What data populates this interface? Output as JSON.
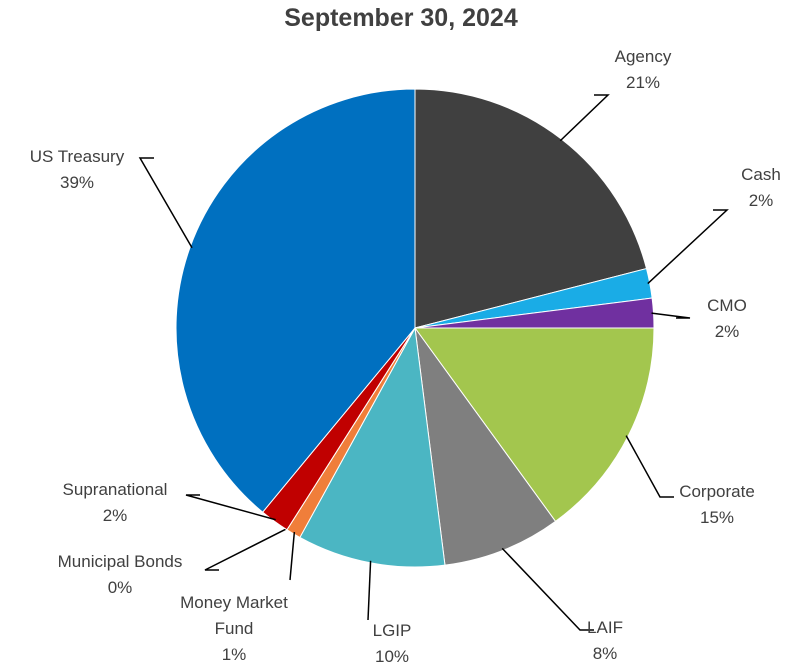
{
  "chart_data": {
    "type": "pie",
    "title": "September 30, 2024",
    "categories": [
      "Agency",
      "Cash",
      "CMO",
      "Corporate",
      "LAIF",
      "LGIP",
      "Money Market Fund",
      "Municipal Bonds",
      "Supranational",
      "US Treasury"
    ],
    "values": [
      21,
      2,
      2,
      15,
      8,
      10,
      1,
      0,
      2,
      39
    ],
    "value_labels": [
      "21%",
      "2%",
      "2%",
      "15%",
      "8%",
      "10%",
      "1%",
      "0%",
      "2%",
      "39%"
    ],
    "colors": [
      "#404040",
      "#1aace6",
      "#7030a0",
      "#a3c64e",
      "#7f7f7f",
      "#4bb6c3",
      "#f07e3a",
      "#ffc000",
      "#c00000",
      "#0070c0"
    ]
  }
}
